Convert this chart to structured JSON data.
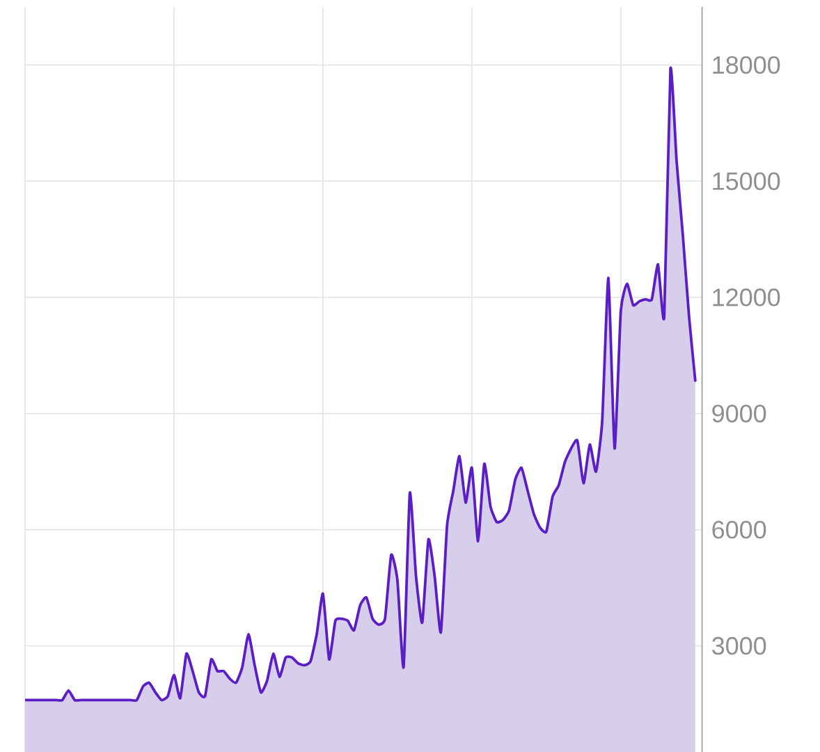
{
  "chart_data": {
    "type": "area",
    "categories": [
      null,
      null,
      null,
      null,
      null,
      null,
      null,
      null,
      null,
      null,
      null,
      null,
      null,
      null,
      null,
      null,
      null,
      null,
      null,
      null,
      null,
      null,
      null,
      null,
      null,
      null,
      null,
      null,
      null,
      null,
      null,
      null,
      null,
      null,
      null,
      null,
      null,
      null,
      null,
      null,
      null,
      null,
      null,
      null,
      null,
      null,
      null,
      null,
      null,
      null,
      null,
      null,
      null,
      null,
      null,
      null,
      null,
      null,
      null,
      null,
      null,
      null,
      null,
      null,
      null,
      null,
      null,
      null,
      null,
      null,
      null,
      null,
      null,
      null,
      null,
      null,
      null,
      null,
      null,
      null,
      null,
      null,
      null,
      null,
      null,
      null,
      null,
      null,
      null,
      null,
      null,
      null,
      null,
      null,
      null,
      null,
      null,
      null,
      null,
      null,
      null,
      null,
      null,
      null,
      null,
      null,
      null,
      null,
      null
    ],
    "values": [
      1600,
      1600,
      1600,
      1600,
      1600,
      1600,
      1600,
      1850,
      1600,
      1600,
      1600,
      1600,
      1600,
      1600,
      1600,
      1600,
      1600,
      1600,
      1600,
      1950,
      2050,
      1800,
      1600,
      1700,
      2250,
      1650,
      2800,
      2350,
      1800,
      1700,
      2650,
      2350,
      2350,
      2150,
      2050,
      2450,
      3300,
      2500,
      1800,
      2100,
      2800,
      2200,
      2700,
      2700,
      2550,
      2500,
      2600,
      3300,
      4350,
      2650,
      3650,
      3700,
      3650,
      3400,
      4050,
      4250,
      3700,
      3550,
      3700,
      5350,
      4700,
      2450,
      6950,
      4800,
      3600,
      5750,
      4800,
      3350,
      6100,
      7000,
      7900,
      6700,
      7600,
      5700,
      7700,
      6600,
      6200,
      6250,
      6500,
      7300,
      7600,
      7000,
      6400,
      6050,
      5950,
      6850,
      7150,
      7750,
      8100,
      8300,
      7200,
      8200,
      7500,
      8800,
      12500,
      8100,
      11650,
      12350,
      11800,
      11900,
      11950,
      11950,
      12850,
      11500,
      17900,
      15500,
      13600,
      11500,
      9850
    ],
    "color": "#5b1ec6",
    "ylim": [
      260,
      19500
    ],
    "yticks": [
      3000,
      6000,
      9000,
      12000,
      15000,
      18000
    ],
    "grid": true
  }
}
